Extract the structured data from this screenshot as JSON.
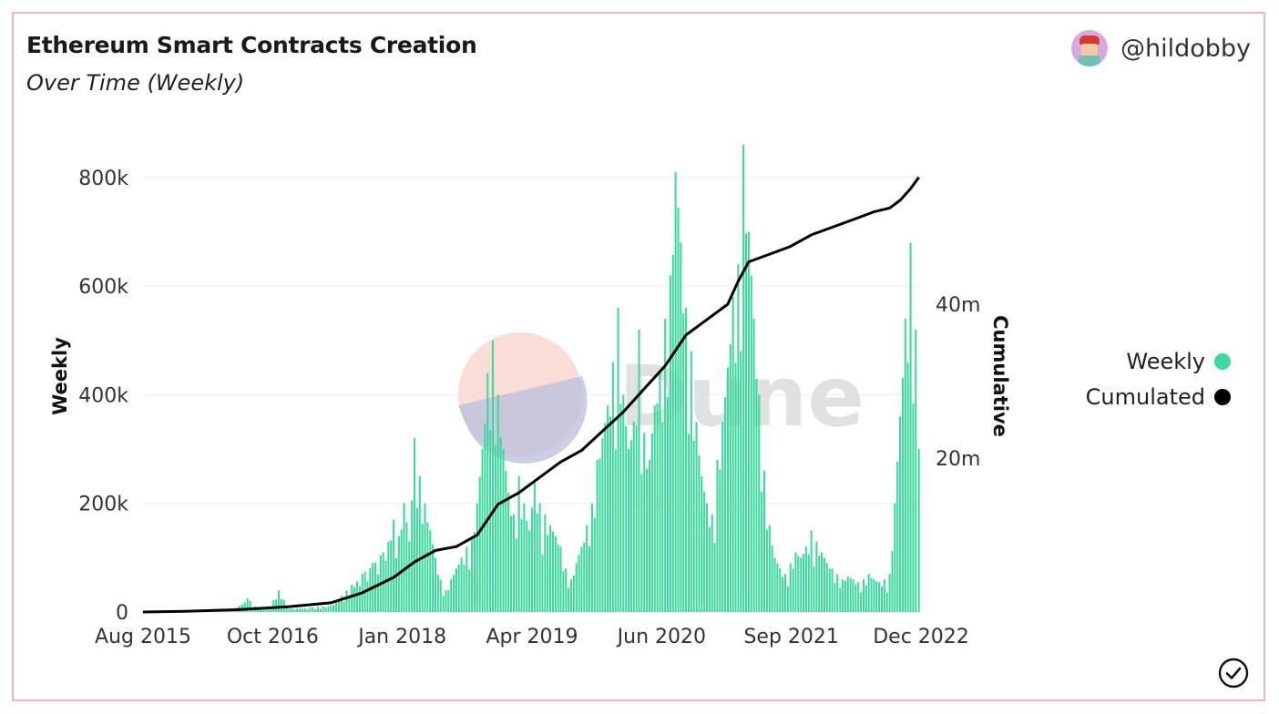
{
  "header": {
    "title": "Ethereum Smart Contracts Creation",
    "subtitle": "Over Time (Weekly)",
    "author": "@hildobby"
  },
  "watermark": "Dune",
  "colors": {
    "weekly": "#3fd9a0",
    "cumulative": "#000000",
    "grid": "#eeeeee",
    "border": "#f4b8ae"
  },
  "legend": {
    "items": [
      {
        "label": "Weekly",
        "color": "#3fd9a0"
      },
      {
        "label": "Cumulated",
        "color": "#000000"
      }
    ]
  },
  "chart_data": {
    "type": "bar",
    "ylabel_left": "Weekly",
    "ylabel_right": "Cumulative",
    "left_ticks": [
      "0",
      "200k",
      "400k",
      "600k",
      "800k"
    ],
    "right_ticks": [
      "20m",
      "40m"
    ],
    "x_ticks": [
      "Aug 2015",
      "Oct 2016",
      "Jan 2018",
      "Apr 2019",
      "Jun 2020",
      "Sep 2021",
      "Dec 2022"
    ],
    "ylim_left": [
      0,
      850000
    ],
    "ylim_right": [
      0,
      60000000
    ],
    "xlim": [
      2015.6,
      2023.05
    ],
    "grid": true,
    "legend_position": "right",
    "series": [
      {
        "name": "Weekly",
        "type": "bar",
        "points": [
          [
            2015.6,
            1000
          ],
          [
            2015.9,
            2000
          ],
          [
            2016.2,
            3000
          ],
          [
            2016.4,
            5000
          ],
          [
            2016.5,
            8000
          ],
          [
            2016.6,
            25000
          ],
          [
            2016.7,
            6000
          ],
          [
            2016.8,
            5000
          ],
          [
            2016.9,
            40000
          ],
          [
            2017.0,
            6000
          ],
          [
            2017.2,
            8000
          ],
          [
            2017.4,
            12000
          ],
          [
            2017.5,
            30000
          ],
          [
            2017.6,
            50000
          ],
          [
            2017.7,
            70000
          ],
          [
            2017.8,
            90000
          ],
          [
            2017.9,
            110000
          ],
          [
            2018.0,
            170000
          ],
          [
            2018.05,
            140000
          ],
          [
            2018.1,
            200000
          ],
          [
            2018.15,
            130000
          ],
          [
            2018.2,
            320000
          ],
          [
            2018.25,
            250000
          ],
          [
            2018.3,
            200000
          ],
          [
            2018.35,
            150000
          ],
          [
            2018.4,
            100000
          ],
          [
            2018.45,
            60000
          ],
          [
            2018.5,
            40000
          ],
          [
            2018.55,
            60000
          ],
          [
            2018.6,
            80000
          ],
          [
            2018.65,
            100000
          ],
          [
            2018.7,
            120000
          ],
          [
            2018.75,
            140000
          ],
          [
            2018.8,
            200000
          ],
          [
            2018.85,
            300000
          ],
          [
            2018.9,
            440000
          ],
          [
            2018.95,
            500000
          ],
          [
            2019.0,
            400000
          ],
          [
            2019.05,
            300000
          ],
          [
            2019.1,
            220000
          ],
          [
            2019.15,
            180000
          ],
          [
            2019.2,
            250000
          ],
          [
            2019.25,
            200000
          ],
          [
            2019.3,
            150000
          ],
          [
            2019.35,
            240000
          ],
          [
            2019.4,
            200000
          ],
          [
            2019.45,
            180000
          ],
          [
            2019.5,
            160000
          ],
          [
            2019.55,
            140000
          ],
          [
            2019.6,
            120000
          ],
          [
            2019.65,
            80000
          ],
          [
            2019.7,
            60000
          ],
          [
            2019.75,
            90000
          ],
          [
            2019.8,
            120000
          ],
          [
            2019.85,
            160000
          ],
          [
            2019.9,
            200000
          ],
          [
            2019.95,
            280000
          ],
          [
            2020.0,
            320000
          ],
          [
            2020.05,
            380000
          ],
          [
            2020.1,
            460000
          ],
          [
            2020.15,
            560000
          ],
          [
            2020.2,
            400000
          ],
          [
            2020.25,
            300000
          ],
          [
            2020.3,
            350000
          ],
          [
            2020.35,
            520000
          ],
          [
            2020.4,
            330000
          ],
          [
            2020.45,
            280000
          ],
          [
            2020.5,
            380000
          ],
          [
            2020.55,
            440000
          ],
          [
            2020.6,
            540000
          ],
          [
            2020.65,
            620000
          ],
          [
            2020.7,
            810000
          ],
          [
            2020.75,
            680000
          ],
          [
            2020.8,
            560000
          ],
          [
            2020.85,
            480000
          ],
          [
            2020.9,
            350000
          ],
          [
            2020.95,
            250000
          ],
          [
            2021.0,
            200000
          ],
          [
            2021.05,
            180000
          ],
          [
            2021.1,
            280000
          ],
          [
            2021.15,
            350000
          ],
          [
            2021.2,
            450000
          ],
          [
            2021.25,
            580000
          ],
          [
            2021.3,
            640000
          ],
          [
            2021.35,
            860000
          ],
          [
            2021.4,
            700000
          ],
          [
            2021.45,
            540000
          ],
          [
            2021.5,
            400000
          ],
          [
            2021.55,
            260000
          ],
          [
            2021.6,
            160000
          ],
          [
            2021.65,
            100000
          ],
          [
            2021.7,
            80000
          ],
          [
            2021.75,
            70000
          ],
          [
            2021.8,
            90000
          ],
          [
            2021.85,
            110000
          ],
          [
            2021.9,
            100000
          ],
          [
            2021.95,
            120000
          ],
          [
            2022.0,
            150000
          ],
          [
            2022.05,
            130000
          ],
          [
            2022.1,
            110000
          ],
          [
            2022.15,
            90000
          ],
          [
            2022.2,
            80000
          ],
          [
            2022.25,
            70000
          ],
          [
            2022.3,
            60000
          ],
          [
            2022.35,
            65000
          ],
          [
            2022.4,
            60000
          ],
          [
            2022.45,
            55000
          ],
          [
            2022.5,
            60000
          ],
          [
            2022.55,
            70000
          ],
          [
            2022.6,
            60000
          ],
          [
            2022.65,
            55000
          ],
          [
            2022.7,
            60000
          ],
          [
            2022.75,
            70000
          ],
          [
            2022.8,
            200000
          ],
          [
            2022.85,
            360000
          ],
          [
            2022.9,
            540000
          ],
          [
            2022.95,
            680000
          ],
          [
            2023.0,
            520000
          ],
          [
            2023.03,
            300000
          ]
        ]
      },
      {
        "name": "Cumulated",
        "type": "line",
        "points": [
          [
            2015.6,
            0
          ],
          [
            2016.0,
            100000
          ],
          [
            2016.5,
            300000
          ],
          [
            2017.0,
            700000
          ],
          [
            2017.4,
            1200000
          ],
          [
            2017.7,
            2500000
          ],
          [
            2018.0,
            4500000
          ],
          [
            2018.2,
            6500000
          ],
          [
            2018.4,
            8000000
          ],
          [
            2018.6,
            8500000
          ],
          [
            2018.8,
            10000000
          ],
          [
            2019.0,
            14000000
          ],
          [
            2019.2,
            15500000
          ],
          [
            2019.4,
            17500000
          ],
          [
            2019.6,
            19500000
          ],
          [
            2019.8,
            21000000
          ],
          [
            2020.0,
            23500000
          ],
          [
            2020.2,
            26000000
          ],
          [
            2020.4,
            29000000
          ],
          [
            2020.6,
            32000000
          ],
          [
            2020.8,
            36000000
          ],
          [
            2021.0,
            38000000
          ],
          [
            2021.2,
            40000000
          ],
          [
            2021.3,
            43000000
          ],
          [
            2021.4,
            45500000
          ],
          [
            2021.6,
            46500000
          ],
          [
            2021.8,
            47500000
          ],
          [
            2022.0,
            49000000
          ],
          [
            2022.2,
            50000000
          ],
          [
            2022.4,
            51000000
          ],
          [
            2022.6,
            52000000
          ],
          [
            2022.75,
            52500000
          ],
          [
            2022.85,
            53500000
          ],
          [
            2022.95,
            55000000
          ],
          [
            2023.03,
            56500000
          ]
        ]
      }
    ]
  }
}
